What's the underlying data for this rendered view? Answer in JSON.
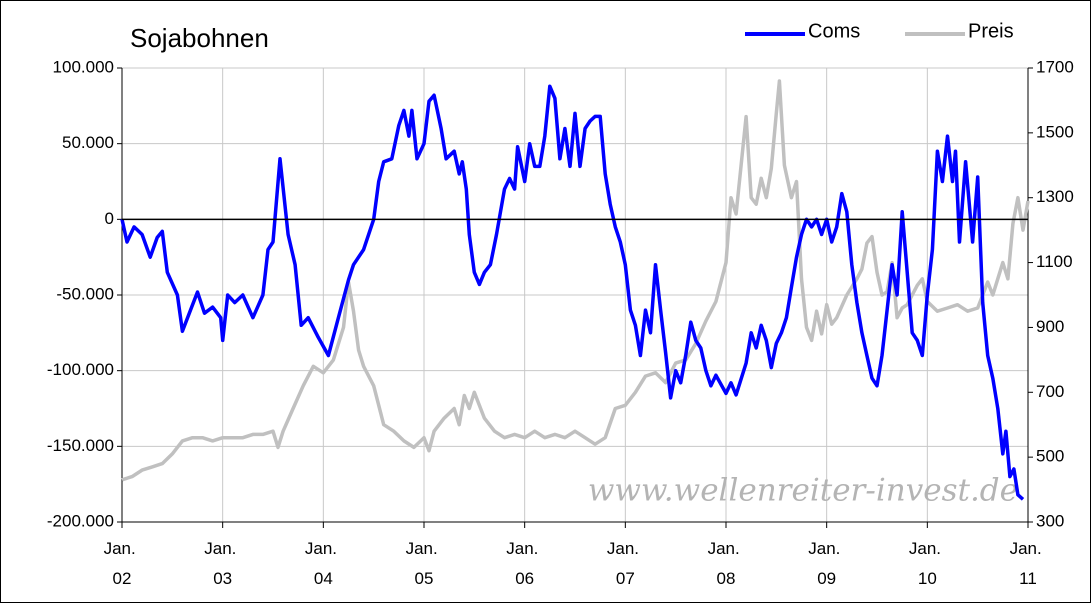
{
  "chart_data": {
    "type": "line",
    "title": "Sojabohnen",
    "xlim": [
      2002,
      2011
    ],
    "xticks": [
      {
        "value": 2002,
        "label": "Jan. 02"
      },
      {
        "value": 2003,
        "label": "Jan. 03"
      },
      {
        "value": 2004,
        "label": "Jan. 04"
      },
      {
        "value": 2005,
        "label": "Jan. 05"
      },
      {
        "value": 2006,
        "label": "Jan. 06"
      },
      {
        "value": 2007,
        "label": "Jan. 07"
      },
      {
        "value": 2008,
        "label": "Jan. 08"
      },
      {
        "value": 2009,
        "label": "Jan. 09"
      },
      {
        "value": 2010,
        "label": "Jan. 10"
      },
      {
        "value": 2011,
        "label": "Jan. 11"
      }
    ],
    "ylim": [
      -200000,
      100000
    ],
    "yticks": [
      {
        "value": 100000,
        "label": "100.000"
      },
      {
        "value": 50000,
        "label": "50.000"
      },
      0,
      {
        "value": -50000,
        "label": "-50.000"
      },
      {
        "value": -100000,
        "label": "-100.000"
      },
      {
        "value": -150000,
        "label": "-150.000"
      },
      {
        "value": -200000,
        "label": "-200.000"
      }
    ],
    "negative_tick_color": "#ff0000",
    "y2lim": [
      300,
      1700
    ],
    "y2ticks": [
      300,
      500,
      700,
      900,
      1100,
      1300,
      1500,
      1700
    ],
    "grid": true,
    "zero_line": true,
    "legend": "top-right",
    "annotation": "www.wellenreiter-invest.de",
    "series": [
      {
        "name": "Coms",
        "color": "#0000ff",
        "x": [
          2002.0,
          2002.05,
          2002.12,
          2002.2,
          2002.28,
          2002.35,
          2002.4,
          2002.45,
          2002.55,
          2002.6,
          2002.68,
          2002.75,
          2002.82,
          2002.9,
          2002.98,
          2003.0,
          2003.05,
          2003.12,
          2003.2,
          2003.3,
          2003.4,
          2003.45,
          2003.5,
          2003.57,
          2003.65,
          2003.72,
          2003.78,
          2003.85,
          2003.95,
          2004.05,
          2004.15,
          2004.25,
          2004.3,
          2004.4,
          2004.5,
          2004.55,
          2004.6,
          2004.68,
          2004.75,
          2004.8,
          2004.85,
          2004.88,
          2004.93,
          2005.0,
          2005.05,
          2005.1,
          2005.17,
          2005.22,
          2005.3,
          2005.35,
          2005.38,
          2005.42,
          2005.45,
          2005.5,
          2005.55,
          2005.6,
          2005.66,
          2005.72,
          2005.8,
          2005.85,
          2005.9,
          2005.93,
          2005.97,
          2006.0,
          2006.05,
          2006.1,
          2006.15,
          2006.2,
          2006.25,
          2006.3,
          2006.35,
          2006.4,
          2006.45,
          2006.5,
          2006.55,
          2006.6,
          2006.65,
          2006.7,
          2006.75,
          2006.8,
          2006.85,
          2006.9,
          2006.95,
          2007.0,
          2007.05,
          2007.1,
          2007.15,
          2007.2,
          2007.25,
          2007.3,
          2007.35,
          2007.4,
          2007.45,
          2007.5,
          2007.55,
          2007.6,
          2007.65,
          2007.7,
          2007.75,
          2007.8,
          2007.85,
          2007.9,
          2008.0,
          2008.05,
          2008.1,
          2008.2,
          2008.25,
          2008.3,
          2008.35,
          2008.4,
          2008.45,
          2008.5,
          2008.55,
          2008.6,
          2008.65,
          2008.7,
          2008.75,
          2008.8,
          2008.85,
          2008.9,
          2008.95,
          2009.0,
          2009.05,
          2009.1,
          2009.15,
          2009.2,
          2009.25,
          2009.3,
          2009.35,
          2009.4,
          2009.45,
          2009.5,
          2009.55,
          2009.6,
          2009.65,
          2009.7,
          2009.75,
          2009.8,
          2009.85,
          2009.9,
          2009.95,
          2010.0,
          2010.05,
          2010.1,
          2010.15,
          2010.2,
          2010.25,
          2010.28,
          2010.32,
          2010.38,
          2010.45,
          2010.5,
          2010.55,
          2010.6,
          2010.65,
          2010.7,
          2010.75,
          2010.78,
          2010.82,
          2010.86,
          2010.9,
          2010.95
        ],
        "values": [
          0,
          -15000,
          -5000,
          -10000,
          -25000,
          -12000,
          -8000,
          -35000,
          -50000,
          -74000,
          -60000,
          -48000,
          -62000,
          -58000,
          -65000,
          -80000,
          -50000,
          -55000,
          -50000,
          -65000,
          -50000,
          -20000,
          -15000,
          40000,
          -10000,
          -30000,
          -70000,
          -65000,
          -78000,
          -90000,
          -65000,
          -40000,
          -30000,
          -20000,
          0,
          25000,
          38000,
          40000,
          62000,
          72000,
          55000,
          72000,
          40000,
          50000,
          78000,
          82000,
          60000,
          40000,
          45000,
          30000,
          38000,
          20000,
          -10000,
          -35000,
          -43000,
          -35000,
          -30000,
          -10000,
          20000,
          27000,
          20000,
          48000,
          35000,
          25000,
          50000,
          35000,
          35000,
          55000,
          88000,
          80000,
          40000,
          60000,
          35000,
          70000,
          35000,
          60000,
          65000,
          68000,
          68000,
          30000,
          10000,
          -5000,
          -15000,
          -30000,
          -60000,
          -70000,
          -90000,
          -60000,
          -75000,
          -30000,
          -60000,
          -88000,
          -118000,
          -100000,
          -108000,
          -90000,
          -68000,
          -80000,
          -85000,
          -100000,
          -110000,
          -103000,
          -115000,
          -108000,
          -116000,
          -95000,
          -75000,
          -85000,
          -70000,
          -80000,
          -98000,
          -82000,
          -75000,
          -65000,
          -45000,
          -25000,
          -10000,
          0,
          -5000,
          0,
          -10000,
          0,
          -15000,
          -5000,
          17000,
          5000,
          -30000,
          -55000,
          -75000,
          -90000,
          -105000,
          -110000,
          -90000,
          -60000,
          -30000,
          -50000,
          5000,
          -35000,
          -75000,
          -80000,
          -90000,
          -50000,
          -20000,
          45000,
          25000,
          55000,
          25000,
          45000,
          -15000,
          38000,
          -15000,
          28000,
          -55000,
          -90000,
          -105000,
          -125000,
          -155000,
          -140000,
          -170000,
          -165000,
          -182000,
          -185000
        ]
      },
      {
        "name": "Preis",
        "color": "#c0c0c0",
        "axis": "y2",
        "x": [
          2002.0,
          2002.1,
          2002.2,
          2002.3,
          2002.4,
          2002.5,
          2002.6,
          2002.7,
          2002.8,
          2002.9,
          2003.0,
          2003.2,
          2003.3,
          2003.4,
          2003.5,
          2003.55,
          2003.6,
          2003.7,
          2003.8,
          2003.9,
          2004.0,
          2004.1,
          2004.2,
          2004.25,
          2004.3,
          2004.35,
          2004.4,
          2004.5,
          2004.6,
          2004.7,
          2004.8,
          2004.9,
          2005.0,
          2005.05,
          2005.1,
          2005.2,
          2005.3,
          2005.35,
          2005.4,
          2005.45,
          2005.5,
          2005.6,
          2005.7,
          2005.8,
          2005.9,
          2006.0,
          2006.1,
          2006.2,
          2006.3,
          2006.4,
          2006.5,
          2006.6,
          2006.7,
          2006.8,
          2006.9,
          2007.0,
          2007.1,
          2007.2,
          2007.3,
          2007.4,
          2007.5,
          2007.6,
          2007.7,
          2007.8,
          2007.9,
          2008.0,
          2008.05,
          2008.1,
          2008.15,
          2008.2,
          2008.25,
          2008.3,
          2008.35,
          2008.4,
          2008.45,
          2008.5,
          2008.53,
          2008.58,
          2008.65,
          2008.7,
          2008.75,
          2008.8,
          2008.85,
          2008.9,
          2008.95,
          2009.0,
          2009.05,
          2009.1,
          2009.2,
          2009.3,
          2009.35,
          2009.4,
          2009.45,
          2009.5,
          2009.55,
          2009.6,
          2009.65,
          2009.7,
          2009.75,
          2009.8,
          2009.85,
          2009.9,
          2009.95,
          2010.0,
          2010.1,
          2010.2,
          2010.3,
          2010.4,
          2010.5,
          2010.6,
          2010.65,
          2010.7,
          2010.75,
          2010.8,
          2010.85,
          2010.9,
          2010.95,
          2011.0
        ],
        "values": [
          430,
          440,
          460,
          470,
          480,
          510,
          550,
          560,
          560,
          550,
          560,
          560,
          570,
          570,
          580,
          530,
          580,
          650,
          720,
          780,
          760,
          800,
          900,
          1040,
          950,
          830,
          780,
          720,
          600,
          580,
          550,
          530,
          560,
          520,
          580,
          620,
          650,
          600,
          690,
          650,
          700,
          620,
          580,
          560,
          570,
          560,
          580,
          560,
          570,
          560,
          580,
          560,
          540,
          560,
          650,
          660,
          700,
          750,
          760,
          730,
          790,
          800,
          850,
          920,
          980,
          1100,
          1300,
          1250,
          1400,
          1550,
          1300,
          1280,
          1360,
          1300,
          1390,
          1560,
          1660,
          1400,
          1300,
          1350,
          1050,
          900,
          860,
          950,
          880,
          970,
          910,
          930,
          1000,
          1050,
          1080,
          1160,
          1180,
          1070,
          1000,
          1010,
          1100,
          930,
          960,
          970,
          1000,
          1030,
          1050,
          980,
          950,
          960,
          970,
          950,
          960,
          1040,
          1000,
          1050,
          1100,
          1050,
          1220,
          1300,
          1200,
          1290
        ]
      }
    ]
  }
}
